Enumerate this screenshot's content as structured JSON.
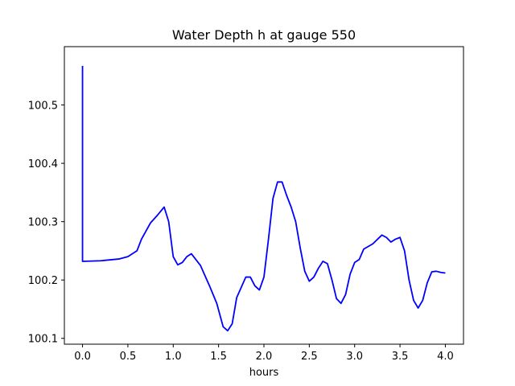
{
  "chart_data": {
    "type": "line",
    "title": "Water Depth h at gauge 550",
    "xlabel": "hours",
    "ylabel": "",
    "xlim": [
      -0.2,
      4.2
    ],
    "ylim": [
      100.09,
      100.6
    ],
    "x_ticks": [
      0.0,
      0.5,
      1.0,
      1.5,
      2.0,
      2.5,
      3.0,
      3.5,
      4.0
    ],
    "x_tick_labels": [
      "0.0",
      "0.5",
      "1.0",
      "1.5",
      "2.0",
      "2.5",
      "3.0",
      "3.5",
      "4.0"
    ],
    "y_ticks": [
      100.1,
      100.2,
      100.3,
      100.4,
      100.5
    ],
    "y_tick_labels": [
      "100.1",
      "100.2",
      "100.3",
      "100.4",
      "100.5"
    ],
    "grid": false,
    "legend": "none",
    "colors": {
      "line": "#0000ff",
      "axes": "#000000",
      "background": "#ffffff"
    },
    "series": [
      {
        "x": [
          0.0,
          0.0,
          0.0,
          0.2,
          0.4,
          0.5,
          0.6,
          0.65,
          0.75,
          0.82,
          0.9,
          0.95,
          1.0,
          1.05,
          1.1,
          1.15,
          1.2,
          1.3,
          1.4,
          1.48,
          1.55,
          1.6,
          1.65,
          1.7,
          1.8,
          1.85,
          1.9,
          1.95,
          2.0,
          2.05,
          2.1,
          2.15,
          2.2,
          2.25,
          2.3,
          2.35,
          2.4,
          2.45,
          2.5,
          2.55,
          2.6,
          2.65,
          2.7,
          2.75,
          2.8,
          2.85,
          2.9,
          2.95,
          3.0,
          3.05,
          3.1,
          3.2,
          3.3,
          3.35,
          3.4,
          3.45,
          3.5,
          3.55,
          3.6,
          3.65,
          3.7,
          3.75,
          3.8,
          3.85,
          3.9,
          3.95,
          4.0
        ],
        "y": [
          100.567,
          100.232,
          100.232,
          100.233,
          100.236,
          100.24,
          100.25,
          100.27,
          100.298,
          100.31,
          100.325,
          100.3,
          100.24,
          100.226,
          100.23,
          100.24,
          100.245,
          100.225,
          100.19,
          100.16,
          100.12,
          100.113,
          100.125,
          100.17,
          100.205,
          100.205,
          100.19,
          100.183,
          100.205,
          100.27,
          100.34,
          100.368,
          100.368,
          100.345,
          100.325,
          100.3,
          100.255,
          100.215,
          100.198,
          100.205,
          100.22,
          100.232,
          100.228,
          100.2,
          100.168,
          100.16,
          100.175,
          100.21,
          100.23,
          100.235,
          100.253,
          100.262,
          100.277,
          100.273,
          100.265,
          100.27,
          100.273,
          100.25,
          100.2,
          100.165,
          100.152,
          100.165,
          100.195,
          100.214,
          100.215,
          100.213,
          100.212
        ]
      }
    ]
  }
}
